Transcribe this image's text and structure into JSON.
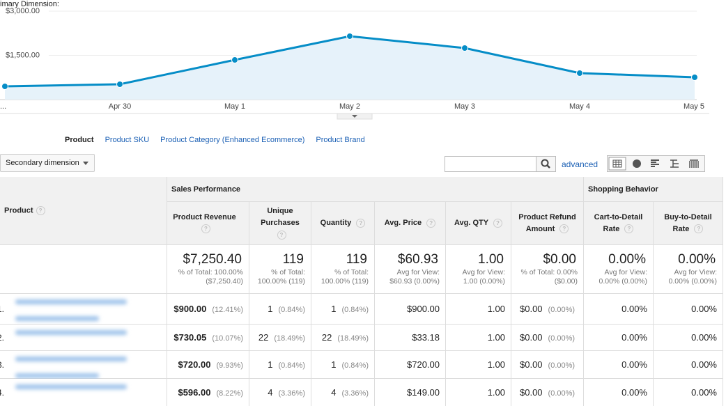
{
  "chart_data": {
    "type": "line",
    "categories": [
      "...",
      "Apr 30",
      "May 1",
      "May 2",
      "May 3",
      "May 4",
      "May 5"
    ],
    "values": [
      449,
      520,
      1346,
      2150,
      1748,
      898,
      756
    ],
    "color": "#058dc7",
    "area_color": "#e6f2fa",
    "ylim": [
      0,
      3000
    ],
    "yticks": [
      {
        "value": 1500,
        "label": "$1,500.00"
      },
      {
        "value": 3000,
        "label": "$3,000.00"
      }
    ],
    "grid": true
  },
  "dimension_bar": {
    "label": "imary Dimension:",
    "tabs": [
      "Product",
      "Product SKU",
      "Product Category (Enhanced Ecommerce)",
      "Product Brand"
    ]
  },
  "toolbar": {
    "secondary": "Secondary dimension",
    "advanced": "advanced"
  },
  "help_icon": "?",
  "table": {
    "groups": [
      "Sales Performance",
      "Shopping Behavior"
    ],
    "columns": [
      "Product",
      "Product Revenue",
      "Unique Purchases",
      "Quantity",
      "Avg. Price",
      "Avg. QTY",
      "Product Refund Amount",
      "Cart-to-Detail Rate",
      "Buy-to-Detail Rate"
    ],
    "totals": [
      [
        "$7,250.40",
        "% of Total: 100.00% ($7,250.40)"
      ],
      [
        "119",
        "% of Total: 100.00% (119)"
      ],
      [
        "119",
        "% of Total: 100.00% (119)"
      ],
      [
        "$60.93",
        "Avg for View: $60.93 (0.00%)"
      ],
      [
        "1.00",
        "Avg for View: 1.00 (0.00%)"
      ],
      [
        "$0.00",
        "% of Total: 0.00% ($0.00)"
      ],
      [
        "0.00%",
        "Avg for View: 0.00% (0.00%)"
      ],
      [
        "0.00%",
        "Avg for View: 0.00% (0.00%)"
      ]
    ],
    "rows": [
      {
        "index": "1.",
        "cells": [
          [
            "$900.00",
            "(12.41%)"
          ],
          [
            "1",
            "(0.84%)"
          ],
          [
            "1",
            "(0.84%)"
          ],
          [
            "$900.00"
          ],
          [
            "1.00"
          ],
          [
            "$0.00",
            "(0.00%)"
          ],
          [
            "0.00%"
          ],
          [
            "0.00%"
          ]
        ]
      },
      {
        "index": "2.",
        "cells": [
          [
            "$730.05",
            "(10.07%)"
          ],
          [
            "22",
            "(18.49%)"
          ],
          [
            "22",
            "(18.49%)"
          ],
          [
            "$33.18"
          ],
          [
            "1.00"
          ],
          [
            "$0.00",
            "(0.00%)"
          ],
          [
            "0.00%"
          ],
          [
            "0.00%"
          ]
        ]
      },
      {
        "index": "3.",
        "cells": [
          [
            "$720.00",
            "(9.93%)"
          ],
          [
            "1",
            "(0.84%)"
          ],
          [
            "1",
            "(0.84%)"
          ],
          [
            "$720.00"
          ],
          [
            "1.00"
          ],
          [
            "$0.00",
            "(0.00%)"
          ],
          [
            "0.00%"
          ],
          [
            "0.00%"
          ]
        ]
      },
      {
        "index": "4.",
        "cells": [
          [
            "$596.00",
            "(8.22%)"
          ],
          [
            "4",
            "(3.36%)"
          ],
          [
            "4",
            "(3.36%)"
          ],
          [
            "$149.00"
          ],
          [
            "1.00"
          ],
          [
            "$0.00",
            "(0.00%)"
          ],
          [
            "0.00%"
          ],
          [
            "0.00%"
          ]
        ]
      }
    ]
  }
}
